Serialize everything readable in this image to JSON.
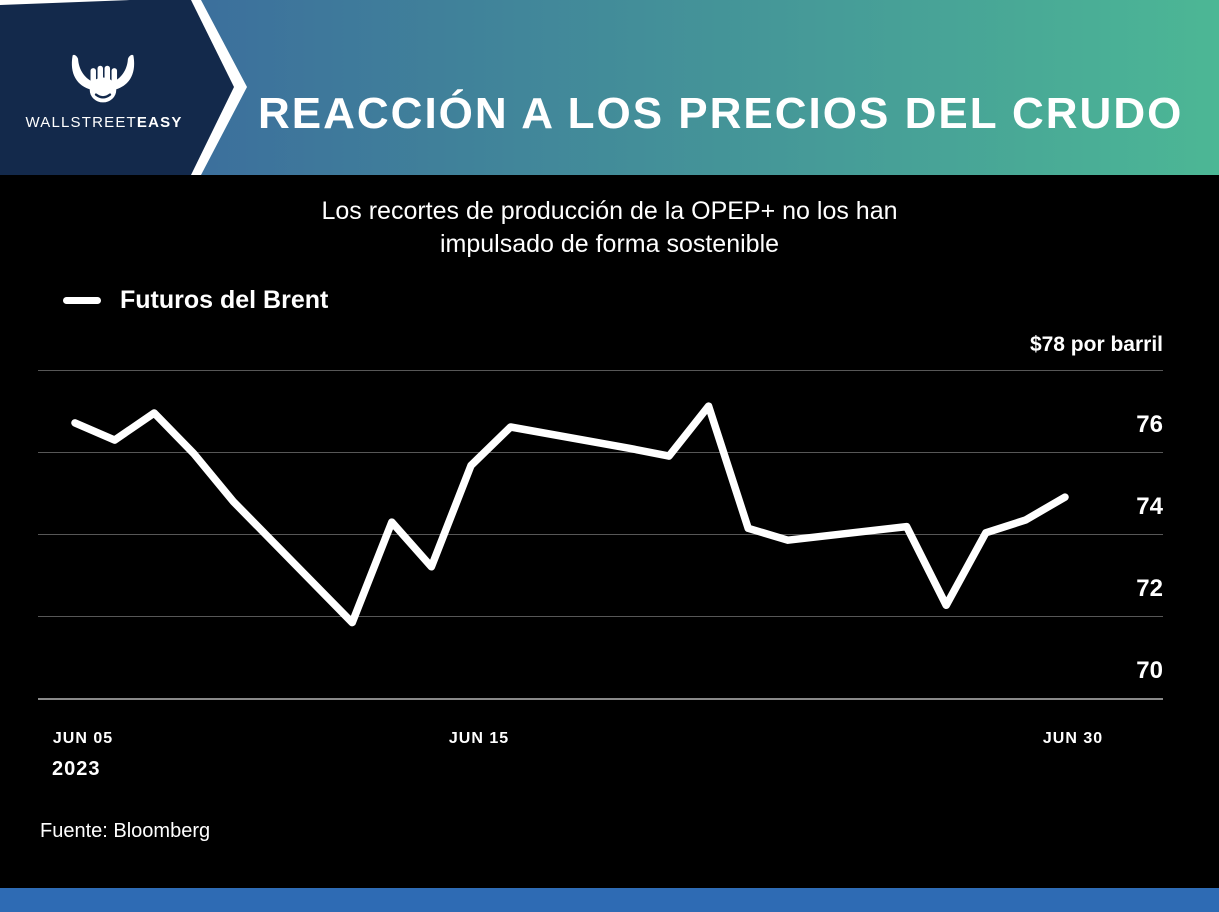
{
  "header": {
    "brand": {
      "name_regular": "WALLSTREET",
      "name_bold": "EASY",
      "icon": "bull-fist-icon"
    },
    "title": "REACCIÓN A LOS PRECIOS DEL CRUDO"
  },
  "chart": {
    "subtitle_line1": "Los recortes de producción de la OPEP+ no los han",
    "subtitle_line2": "impulsado de forma sostenible",
    "legend_label": "Futuros del Brent",
    "source": "Fuente: Bloomberg"
  },
  "chart_data": {
    "type": "line",
    "title": "Los recortes de producción de la OPEP+ no los han impulsado de forma sostenible",
    "legend_position": "top-left",
    "grid": "horizontal",
    "ylim": [
      70,
      78
    ],
    "line_color": "#FFFFFF",
    "year_label": "2023",
    "y_ticks": [
      {
        "value": 78,
        "label": "$78 por barril"
      },
      {
        "value": 76,
        "label": "76"
      },
      {
        "value": 74,
        "label": "74"
      },
      {
        "value": 72,
        "label": "72"
      },
      {
        "value": 70,
        "label": "70"
      }
    ],
    "x_ticks": [
      {
        "date": "2023-06-05",
        "label": "JUN 05"
      },
      {
        "date": "2023-06-15",
        "label": "JUN 15"
      },
      {
        "date": "2023-06-30",
        "label": "JUN 30"
      }
    ],
    "series": [
      {
        "name": "Futuros del Brent",
        "unit": "$ por barril",
        "points": [
          {
            "date": "2023-06-05",
            "value": 76.71
          },
          {
            "date": "2023-06-06",
            "value": 76.29
          },
          {
            "date": "2023-06-07",
            "value": 76.95
          },
          {
            "date": "2023-06-08",
            "value": 75.96
          },
          {
            "date": "2023-06-09",
            "value": 74.79
          },
          {
            "date": "2023-06-12",
            "value": 71.84
          },
          {
            "date": "2023-06-13",
            "value": 74.29
          },
          {
            "date": "2023-06-14",
            "value": 73.2
          },
          {
            "date": "2023-06-15",
            "value": 75.67
          },
          {
            "date": "2023-06-16",
            "value": 76.61
          },
          {
            "date": "2023-06-19",
            "value": 76.09
          },
          {
            "date": "2023-06-20",
            "value": 75.9
          },
          {
            "date": "2023-06-21",
            "value": 77.12
          },
          {
            "date": "2023-06-22",
            "value": 74.14
          },
          {
            "date": "2023-06-23",
            "value": 73.85
          },
          {
            "date": "2023-06-26",
            "value": 74.18
          },
          {
            "date": "2023-06-27",
            "value": 72.26
          },
          {
            "date": "2023-06-28",
            "value": 74.03
          },
          {
            "date": "2023-06-29",
            "value": 74.34
          },
          {
            "date": "2023-06-30",
            "value": 74.9
          }
        ]
      }
    ]
  },
  "colors": {
    "background": "#000000",
    "navy": "#13294B",
    "gradient_start": "#3C6F9C",
    "gradient_end": "#4CB795",
    "line": "#FFFFFF",
    "gridline": "#575757",
    "axis_line": "#8A8A8A",
    "footer_bar": "#2E6BB4"
  }
}
